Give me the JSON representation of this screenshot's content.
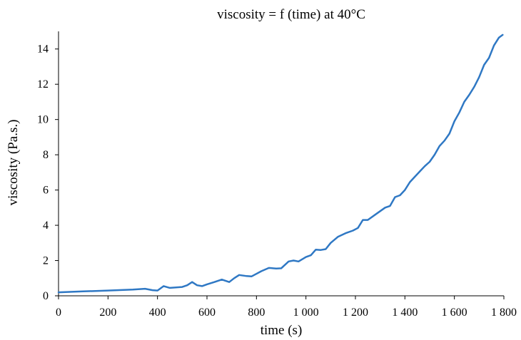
{
  "chart_data": {
    "type": "line",
    "title": "viscosity = f (time) at 40°C",
    "xlabel": "time (s)",
    "ylabel": "viscosity  (Pa.s.)",
    "xlim": [
      0,
      1800
    ],
    "ylim": [
      0,
      15
    ],
    "x_ticks": [
      0,
      200,
      400,
      600,
      800,
      1000,
      1200,
      1400,
      1600,
      1800
    ],
    "x_tick_labels": [
      "0",
      "200",
      "400",
      "600",
      "800",
      "1 000",
      "1 200",
      "1 400",
      "1 600",
      "1 800"
    ],
    "y_ticks": [
      0,
      2,
      4,
      6,
      8,
      10,
      12,
      14
    ],
    "y_tick_labels": [
      "0",
      "2",
      "4",
      "6",
      "8",
      "10",
      "12",
      "14"
    ],
    "grid": false,
    "legend": "none",
    "series": [
      {
        "color": "#2F78C4",
        "points": [
          [
            0,
            0.2
          ],
          [
            100,
            0.25
          ],
          [
            200,
            0.3
          ],
          [
            300,
            0.35
          ],
          [
            350,
            0.4
          ],
          [
            380,
            0.32
          ],
          [
            400,
            0.3
          ],
          [
            425,
            0.55
          ],
          [
            450,
            0.45
          ],
          [
            500,
            0.5
          ],
          [
            520,
            0.6
          ],
          [
            540,
            0.78
          ],
          [
            560,
            0.6
          ],
          [
            580,
            0.55
          ],
          [
            600,
            0.65
          ],
          [
            630,
            0.78
          ],
          [
            660,
            0.92
          ],
          [
            690,
            0.78
          ],
          [
            710,
            1.0
          ],
          [
            730,
            1.18
          ],
          [
            760,
            1.12
          ],
          [
            780,
            1.1
          ],
          [
            820,
            1.4
          ],
          [
            850,
            1.58
          ],
          [
            880,
            1.55
          ],
          [
            900,
            1.56
          ],
          [
            930,
            1.95
          ],
          [
            950,
            2.0
          ],
          [
            970,
            1.95
          ],
          [
            1000,
            2.2
          ],
          [
            1020,
            2.3
          ],
          [
            1040,
            2.62
          ],
          [
            1060,
            2.6
          ],
          [
            1080,
            2.65
          ],
          [
            1100,
            3.0
          ],
          [
            1130,
            3.35
          ],
          [
            1160,
            3.55
          ],
          [
            1190,
            3.7
          ],
          [
            1210,
            3.85
          ],
          [
            1230,
            4.3
          ],
          [
            1250,
            4.3
          ],
          [
            1280,
            4.6
          ],
          [
            1320,
            5.0
          ],
          [
            1340,
            5.1
          ],
          [
            1360,
            5.6
          ],
          [
            1380,
            5.7
          ],
          [
            1400,
            6.0
          ],
          [
            1420,
            6.45
          ],
          [
            1440,
            6.75
          ],
          [
            1460,
            7.05
          ],
          [
            1480,
            7.35
          ],
          [
            1500,
            7.6
          ],
          [
            1520,
            8.0
          ],
          [
            1540,
            8.5
          ],
          [
            1560,
            8.8
          ],
          [
            1580,
            9.2
          ],
          [
            1600,
            9.9
          ],
          [
            1620,
            10.4
          ],
          [
            1640,
            11.0
          ],
          [
            1660,
            11.4
          ],
          [
            1680,
            11.85
          ],
          [
            1700,
            12.4
          ],
          [
            1720,
            13.1
          ],
          [
            1740,
            13.5
          ],
          [
            1760,
            14.2
          ],
          [
            1780,
            14.65
          ],
          [
            1795,
            14.8
          ]
        ]
      }
    ]
  }
}
